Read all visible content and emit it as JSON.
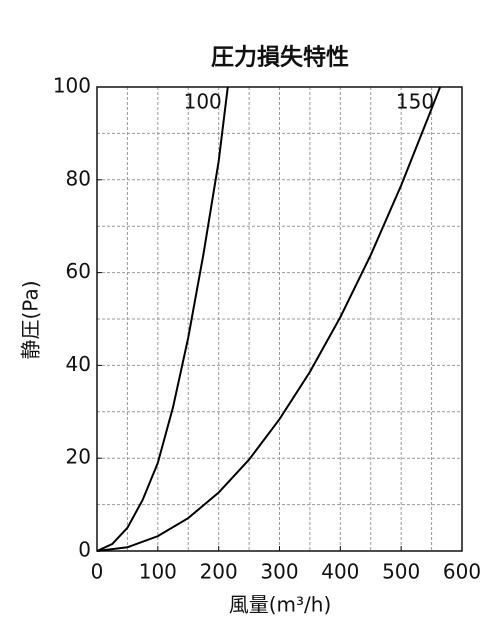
{
  "chart_data": {
    "type": "line",
    "title": "圧力損失特性",
    "x_label": "風量(m³/h)",
    "y_label": "静圧(Pa)",
    "xlim": [
      0,
      600
    ],
    "xticks": [
      0,
      100,
      200,
      300,
      400,
      500,
      600
    ],
    "ylim": [
      0,
      100
    ],
    "yticks": [
      0,
      20,
      40,
      60,
      80,
      100
    ],
    "xgrid": [
      50,
      100,
      150,
      200,
      250,
      300,
      350,
      400,
      450,
      500,
      550
    ],
    "ygrid": [
      10,
      20,
      30,
      40,
      50,
      60,
      70,
      80,
      90
    ],
    "grid": true,
    "series": [
      {
        "name": "100",
        "color": "#000000",
        "x": [
          0,
          25,
          50,
          75,
          100,
          125,
          150,
          175,
          200,
          215
        ],
        "values": [
          0,
          1.5,
          5,
          11,
          19,
          31,
          46,
          64,
          84,
          100
        ]
      },
      {
        "name": "150",
        "color": "#000000",
        "x": [
          0,
          50,
          100,
          150,
          200,
          250,
          300,
          350,
          400,
          450,
          500,
          550,
          564
        ],
        "values": [
          0,
          0.8,
          3.2,
          7.1,
          12.6,
          19.7,
          28.4,
          38.6,
          50.4,
          63.8,
          78.8,
          95.3,
          100
        ]
      }
    ]
  }
}
